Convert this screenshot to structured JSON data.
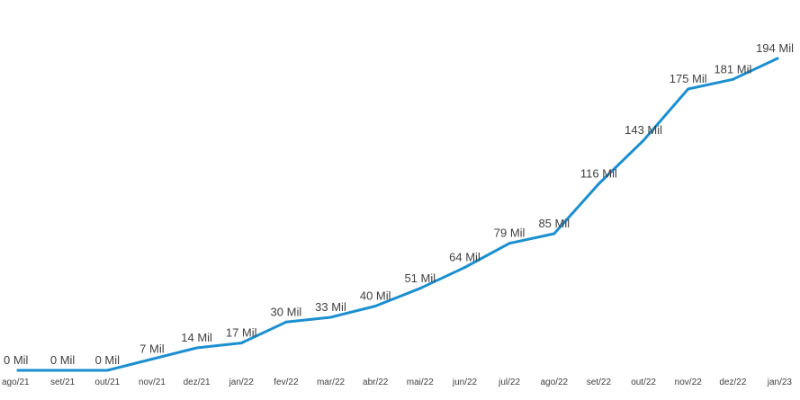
{
  "chart_data": {
    "type": "line",
    "categories": [
      "ago/21",
      "set/21",
      "out/21",
      "nov/21",
      "dez/21",
      "jan/22",
      "fev/22",
      "mar/22",
      "abr/22",
      "mai/22",
      "jun/22",
      "jul/22",
      "ago/22",
      "set/22",
      "out/22",
      "nov/22",
      "dez/22",
      "jan/23"
    ],
    "values": [
      0,
      0,
      0,
      7,
      14,
      17,
      30,
      33,
      40,
      51,
      64,
      79,
      85,
      116,
      143,
      175,
      181,
      194
    ],
    "data_labels": [
      "0 Mil",
      "0 Mil",
      "0 Mil",
      "7 Mil",
      "14 Mil",
      "17 Mil",
      "30 Mil",
      "33 Mil",
      "40 Mil",
      "51 Mil",
      "64 Mil",
      "79 Mil",
      "85 Mil",
      "116 Mil",
      "143 Mil",
      "175 Mil",
      "181 Mil",
      "194 Mil"
    ],
    "title": "",
    "xlabel": "",
    "ylabel": "",
    "unit": "Mil",
    "ylim": [
      0,
      194
    ],
    "grid": false,
    "legend": "none",
    "colors": {
      "line": "#1b8fcf",
      "text": "#404040",
      "background": "#ffffff"
    }
  }
}
